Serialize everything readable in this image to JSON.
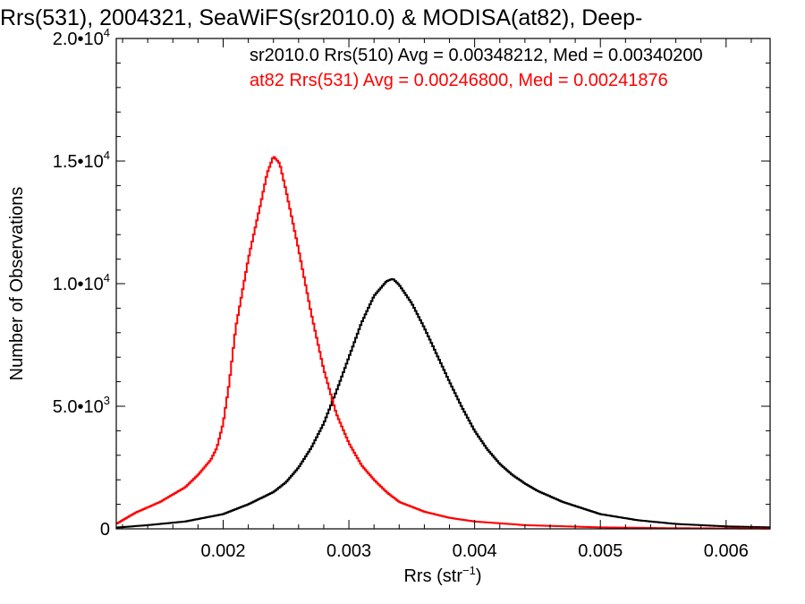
{
  "chart_data": {
    "type": "line",
    "title": "Rrs(531), 2004321, SeaWiFS(sr2010.0) & MODISA(at82), Deep-",
    "xlabel": "Rrs (str",
    "xlabel_sup": "−1",
    "xlabel_tail": ")",
    "ylabel": "Number of Observations",
    "xlim": [
      0.00115,
      0.00635
    ],
    "ylim": [
      0,
      20000
    ],
    "x_ticks": [
      {
        "value": 0.002,
        "label": "0.002"
      },
      {
        "value": 0.003,
        "label": "0.003"
      },
      {
        "value": 0.004,
        "label": "0.004"
      },
      {
        "value": 0.005,
        "label": "0.005"
      },
      {
        "value": 0.006,
        "label": "0.006"
      }
    ],
    "y_ticks": [
      {
        "value": 0,
        "base": "0",
        "sup": ""
      },
      {
        "value": 5000,
        "base": "5.0•10",
        "sup": "3"
      },
      {
        "value": 10000,
        "base": "1.0•10",
        "sup": "4"
      },
      {
        "value": 15000,
        "base": "1.5•10",
        "sup": "4"
      },
      {
        "value": 20000,
        "base": "2.0•10",
        "sup": "4"
      }
    ],
    "annotations": [
      {
        "text": "sr2010.0 Rrs(510) Avg = 0.00348212, Med = 0.00340200",
        "color": "#000000"
      },
      {
        "text": "at82 Rrs(531) Avg = 0.00246800, Med = 0.00241876",
        "color": "#ff0000"
      }
    ],
    "grid": false,
    "series": [
      {
        "color": "#000000",
        "points": [
          [
            0.00115,
            50
          ],
          [
            0.0014,
            150
          ],
          [
            0.0017,
            300
          ],
          [
            0.002,
            600
          ],
          [
            0.0022,
            1000
          ],
          [
            0.0024,
            1500
          ],
          [
            0.0025,
            1900
          ],
          [
            0.0026,
            2500
          ],
          [
            0.0027,
            3300
          ],
          [
            0.0028,
            4300
          ],
          [
            0.0029,
            5600
          ],
          [
            0.003,
            7000
          ],
          [
            0.0031,
            8400
          ],
          [
            0.0032,
            9500
          ],
          [
            0.0033,
            10100
          ],
          [
            0.00335,
            10200
          ],
          [
            0.0034,
            9950
          ],
          [
            0.0035,
            9200
          ],
          [
            0.0036,
            8200
          ],
          [
            0.0037,
            7100
          ],
          [
            0.0038,
            6000
          ],
          [
            0.0039,
            4950
          ],
          [
            0.004,
            4000
          ],
          [
            0.0041,
            3250
          ],
          [
            0.0042,
            2650
          ],
          [
            0.0043,
            2200
          ],
          [
            0.0044,
            1850
          ],
          [
            0.0045,
            1550
          ],
          [
            0.0047,
            1100
          ],
          [
            0.005,
            600
          ],
          [
            0.0053,
            350
          ],
          [
            0.0056,
            200
          ],
          [
            0.006,
            100
          ],
          [
            0.00635,
            60
          ]
        ]
      },
      {
        "color": "#ff0000",
        "points": [
          [
            0.00115,
            200
          ],
          [
            0.0013,
            650
          ],
          [
            0.0015,
            1100
          ],
          [
            0.0017,
            1700
          ],
          [
            0.0018,
            2200
          ],
          [
            0.0019,
            2800
          ],
          [
            0.00195,
            3300
          ],
          [
            0.002,
            4300
          ],
          [
            0.00205,
            6000
          ],
          [
            0.0021,
            8200
          ],
          [
            0.0022,
            11000
          ],
          [
            0.0023,
            13300
          ],
          [
            0.00235,
            14500
          ],
          [
            0.0024,
            15200
          ],
          [
            0.00245,
            14900
          ],
          [
            0.0025,
            13800
          ],
          [
            0.0026,
            11400
          ],
          [
            0.0027,
            8800
          ],
          [
            0.0028,
            6500
          ],
          [
            0.0029,
            4700
          ],
          [
            0.003,
            3500
          ],
          [
            0.0031,
            2600
          ],
          [
            0.0032,
            2000
          ],
          [
            0.0033,
            1500
          ],
          [
            0.0034,
            1100
          ],
          [
            0.0036,
            700
          ],
          [
            0.0038,
            450
          ],
          [
            0.004,
            300
          ],
          [
            0.0044,
            150
          ],
          [
            0.005,
            60
          ],
          [
            0.0055,
            30
          ],
          [
            0.00635,
            10
          ]
        ]
      }
    ]
  }
}
